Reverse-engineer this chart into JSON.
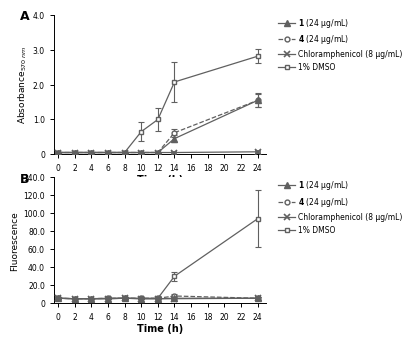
{
  "time_points_full": [
    0,
    2,
    4,
    6,
    8,
    10,
    12,
    14,
    16,
    18,
    20,
    22,
    24
  ],
  "panel_A": {
    "compound1": {
      "t": [
        0,
        2,
        4,
        6,
        8,
        10,
        12,
        14,
        24
      ],
      "y": [
        0.05,
        0.05,
        0.05,
        0.05,
        0.05,
        0.05,
        0.05,
        0.45,
        1.55
      ],
      "yerr": [
        0.02,
        0.02,
        0.02,
        0.02,
        0.02,
        0.02,
        0.02,
        0.1,
        0.18
      ]
    },
    "compound4": {
      "t": [
        0,
        2,
        4,
        6,
        8,
        10,
        12,
        14,
        24
      ],
      "y": [
        0.05,
        0.05,
        0.05,
        0.05,
        0.05,
        0.05,
        0.05,
        0.62,
        1.55
      ],
      "yerr": [
        0.02,
        0.02,
        0.02,
        0.02,
        0.02,
        0.02,
        0.02,
        0.12,
        0.2
      ]
    },
    "chloramphenicol": {
      "t": [
        0,
        2,
        4,
        6,
        8,
        10,
        12,
        14,
        24
      ],
      "y": [
        0.05,
        0.05,
        0.05,
        0.05,
        0.05,
        0.05,
        0.05,
        0.05,
        0.07
      ],
      "yerr": [
        0.01,
        0.01,
        0.01,
        0.01,
        0.01,
        0.01,
        0.01,
        0.01,
        0.02
      ]
    },
    "dmso": {
      "t": [
        0,
        2,
        4,
        6,
        8,
        10,
        12,
        14,
        24
      ],
      "y": [
        0.05,
        0.05,
        0.05,
        0.05,
        0.05,
        0.65,
        1.0,
        2.08,
        2.82
      ],
      "yerr": [
        0.02,
        0.02,
        0.02,
        0.02,
        0.02,
        0.28,
        0.32,
        0.58,
        0.2
      ]
    },
    "ylim": [
      0,
      4.0
    ],
    "yticks": [
      0.0,
      1.0,
      2.0,
      3.0,
      4.0
    ],
    "ytick_labels": [
      "0",
      "1.0",
      "2.0",
      "3.0",
      "4.0"
    ],
    "ylabel": "Absorbance$_{570\\ nm}$"
  },
  "panel_B": {
    "compound1": {
      "t": [
        0,
        2,
        4,
        6,
        8,
        10,
        12,
        14,
        24
      ],
      "y": [
        5.5,
        5.0,
        5.0,
        5.0,
        5.5,
        5.0,
        5.0,
        5.5,
        5.5
      ],
      "yerr": [
        1.0,
        0.8,
        0.8,
        0.8,
        1.0,
        0.8,
        0.8,
        1.0,
        1.5
      ]
    },
    "compound4": {
      "t": [
        0,
        2,
        4,
        6,
        8,
        10,
        12,
        14,
        24
      ],
      "y": [
        5.5,
        5.0,
        5.0,
        5.5,
        5.5,
        5.5,
        5.5,
        8.0,
        5.5
      ],
      "yerr": [
        1.0,
        0.8,
        0.8,
        1.0,
        1.0,
        1.0,
        1.0,
        2.0,
        1.5
      ]
    },
    "chloramphenicol": {
      "t": [
        0,
        2,
        4,
        6,
        8,
        10,
        12,
        14,
        24
      ],
      "y": [
        5.5,
        5.0,
        5.0,
        5.0,
        5.5,
        5.0,
        5.0,
        5.0,
        5.5
      ],
      "yerr": [
        1.0,
        0.8,
        0.8,
        0.8,
        1.0,
        0.8,
        0.8,
        0.8,
        1.5
      ]
    },
    "dmso": {
      "t": [
        0,
        2,
        4,
        6,
        8,
        10,
        12,
        14,
        24
      ],
      "y": [
        5.5,
        5.0,
        5.0,
        5.5,
        5.5,
        5.5,
        5.5,
        30.0,
        94.0
      ],
      "yerr": [
        1.0,
        0.8,
        0.8,
        1.0,
        1.0,
        1.0,
        2.0,
        5.0,
        32.0
      ]
    },
    "ylim": [
      0,
      140.0
    ],
    "yticks": [
      0.0,
      20.0,
      40.0,
      60.0,
      80.0,
      100.0,
      120.0,
      140.0
    ],
    "ytick_labels": [
      "0",
      "20.0",
      "40.0",
      "60.0",
      "80.0",
      "100.0",
      "120.0",
      "140.0"
    ],
    "ylabel": "Fluorescence"
  },
  "xticks": [
    0,
    2,
    4,
    6,
    8,
    10,
    12,
    14,
    16,
    18,
    20,
    22,
    24
  ],
  "xlabel": "Time (h)",
  "legend_labels_bold": [
    "1",
    "4"
  ],
  "legend_labels_rest": [
    " (24 μg/mL)",
    " (24 μg/mL)",
    "Chloramphenicol (8 μg/mL)",
    "1% DMSO"
  ],
  "color": "#606060",
  "bg_color": "#ffffff"
}
